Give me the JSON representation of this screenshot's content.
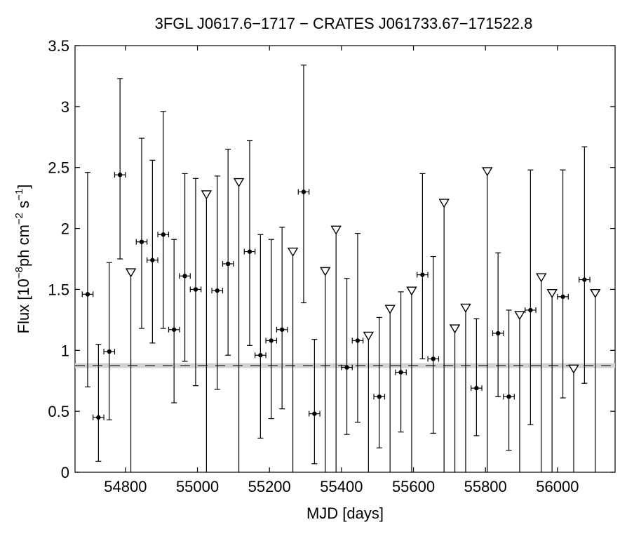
{
  "chart_data": {
    "type": "scatter",
    "title": "3FGL J0617.6−1717 − CRATES J061733.67−171522.8",
    "xlabel": "MJD [days]",
    "ylabel": {
      "prefix": "Flux [10",
      "exp1": "−8",
      "mid": "ph cm",
      "exp2": "−2",
      "mid2": " s",
      "exp3": "−1",
      "suffix": "]"
    },
    "xlim": [
      54660,
      56160
    ],
    "ylim": [
      0,
      3.5
    ],
    "xticks": [
      54800,
      55000,
      55200,
      55400,
      55600,
      55800,
      56000
    ],
    "yticks": [
      0,
      0.5,
      1,
      1.5,
      2,
      2.5,
      3,
      3.5
    ],
    "ytick_labels": [
      "0",
      "0.5",
      "1",
      "1.5",
      "2",
      "2.5",
      "3",
      "3.5"
    ],
    "grid": false,
    "bin_half_width_days": 15,
    "mean_flux": 0.875,
    "mean_flux_band": [
      0.855,
      0.895
    ],
    "series": [
      {
        "kind": "detection",
        "points": [
          {
            "x": 54695,
            "y": 1.46,
            "ylow": 0.7,
            "yhigh": 2.46
          },
          {
            "x": 54725,
            "y": 0.45,
            "ylow": 0.09,
            "yhigh": 1.05
          },
          {
            "x": 54755,
            "y": 0.99,
            "ylow": 0.43,
            "yhigh": 1.72
          },
          {
            "x": 54785,
            "y": 2.44,
            "ylow": 1.75,
            "yhigh": 3.23
          },
          {
            "x": 54845,
            "y": 1.89,
            "ylow": 1.18,
            "yhigh": 2.74
          },
          {
            "x": 54875,
            "y": 1.74,
            "ylow": 1.06,
            "yhigh": 2.56
          },
          {
            "x": 54905,
            "y": 1.95,
            "ylow": 1.18,
            "yhigh": 2.96
          },
          {
            "x": 54935,
            "y": 1.17,
            "ylow": 0.57,
            "yhigh": 1.91
          },
          {
            "x": 54965,
            "y": 1.61,
            "ylow": 0.91,
            "yhigh": 2.45
          },
          {
            "x": 54995,
            "y": 1.5,
            "ylow": 0.71,
            "yhigh": 2.41
          },
          {
            "x": 55055,
            "y": 1.49,
            "ylow": 0.68,
            "yhigh": 2.43
          },
          {
            "x": 55085,
            "y": 1.71,
            "ylow": 0.96,
            "yhigh": 2.65
          },
          {
            "x": 55145,
            "y": 1.81,
            "ylow": 1.04,
            "yhigh": 2.72
          },
          {
            "x": 55175,
            "y": 0.96,
            "ylow": 0.28,
            "yhigh": 1.95
          },
          {
            "x": 55205,
            "y": 1.08,
            "ylow": 0.44,
            "yhigh": 1.91
          },
          {
            "x": 55235,
            "y": 1.17,
            "ylow": 0.52,
            "yhigh": 2.01
          },
          {
            "x": 55295,
            "y": 2.3,
            "ylow": 1.39,
            "yhigh": 3.34
          },
          {
            "x": 55325,
            "y": 0.48,
            "ylow": 0.07,
            "yhigh": 1.09
          },
          {
            "x": 55415,
            "y": 0.86,
            "ylow": 0.31,
            "yhigh": 1.59
          },
          {
            "x": 55445,
            "y": 1.08,
            "ylow": 0.41,
            "yhigh": 1.96
          },
          {
            "x": 55505,
            "y": 0.62,
            "ylow": 0.2,
            "yhigh": 1.27
          },
          {
            "x": 55565,
            "y": 0.82,
            "ylow": 0.33,
            "yhigh": 1.48
          },
          {
            "x": 55625,
            "y": 1.62,
            "ylow": 0.93,
            "yhigh": 2.45
          },
          {
            "x": 55655,
            "y": 0.93,
            "ylow": 0.32,
            "yhigh": 1.77
          },
          {
            "x": 55775,
            "y": 0.69,
            "ylow": 0.3,
            "yhigh": 1.26
          },
          {
            "x": 55835,
            "y": 1.14,
            "ylow": 0.62,
            "yhigh": 1.8
          },
          {
            "x": 55865,
            "y": 0.62,
            "ylow": 0.18,
            "yhigh": 1.33
          },
          {
            "x": 55925,
            "y": 1.33,
            "ylow": 0.39,
            "yhigh": 2.48
          },
          {
            "x": 56015,
            "y": 1.44,
            "ylow": 0.61,
            "yhigh": 2.48
          },
          {
            "x": 56075,
            "y": 1.58,
            "ylow": 0.73,
            "yhigh": 2.67
          }
        ]
      },
      {
        "kind": "upper_limit",
        "points": [
          {
            "x": 54815,
            "y": 1.64
          },
          {
            "x": 55025,
            "y": 2.28
          },
          {
            "x": 55115,
            "y": 2.38
          },
          {
            "x": 55265,
            "y": 1.81
          },
          {
            "x": 55355,
            "y": 1.65
          },
          {
            "x": 55385,
            "y": 1.99
          },
          {
            "x": 55475,
            "y": 1.12
          },
          {
            "x": 55535,
            "y": 1.34
          },
          {
            "x": 55595,
            "y": 1.49
          },
          {
            "x": 55685,
            "y": 2.21
          },
          {
            "x": 55715,
            "y": 1.18
          },
          {
            "x": 55745,
            "y": 1.35
          },
          {
            "x": 55805,
            "y": 2.47
          },
          {
            "x": 55895,
            "y": 1.29
          },
          {
            "x": 55955,
            "y": 1.6
          },
          {
            "x": 55985,
            "y": 1.47
          },
          {
            "x": 56045,
            "y": 0.85
          },
          {
            "x": 56105,
            "y": 1.47
          }
        ]
      }
    ]
  }
}
